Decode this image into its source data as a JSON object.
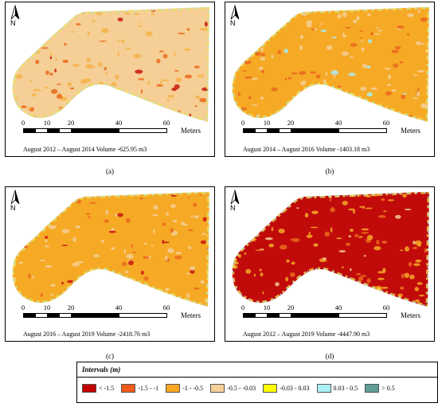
{
  "north_label": "N",
  "scale": {
    "ticks": [
      "0",
      "10",
      "20",
      "40",
      "60"
    ],
    "unit": "Meters"
  },
  "panels": [
    {
      "label": "(a)",
      "caption": "August 2012 – August 2014 Volume -625.95 m3",
      "base": "#f5cf95",
      "classes": {
        "c1": "#f4b34a",
        "c2": "#ea6a1e",
        "c3": "#c8170f"
      }
    },
    {
      "label": "(b)",
      "caption": "August 2014 – August 2016 Volume -1403.18 m3",
      "base": "#f6a925",
      "classes": {
        "c1": "#f5cf95",
        "c2": "#ea6a1e",
        "c3": "#a8ecf0"
      }
    },
    {
      "label": "(c)",
      "caption": "August 2016 – August 2019 Volume -2418.76 m3",
      "base": "#f6a925",
      "classes": {
        "c1": "#f5cf95",
        "c2": "#ea6a1e",
        "c3": "#c8170f"
      }
    },
    {
      "label": "(d)",
      "caption": "August 2012 – August 2019 Volume -4447.90 m3",
      "base": "#c10b0b",
      "classes": {
        "c1": "#f6a925",
        "c2": "#ea6a1e",
        "c3": "#f5cf95"
      }
    }
  ],
  "legend": {
    "title": "Intervals (m)",
    "items": [
      {
        "label": "< -1.5",
        "color": "#c00000"
      },
      {
        "label": "-1.5 - -1",
        "color": "#f05a1a"
      },
      {
        "label": "-1 - -0.5",
        "color": "#f8a51f"
      },
      {
        "label": "-0.5 - -0.03",
        "color": "#f7d09a"
      },
      {
        "label": "-0.03 - 0.03",
        "color": "#ffff00"
      },
      {
        "label": "0.03 - 0.5",
        "color": "#a9f1f6"
      },
      {
        "label": "> 0.5",
        "color": "#5f9e96"
      }
    ]
  }
}
